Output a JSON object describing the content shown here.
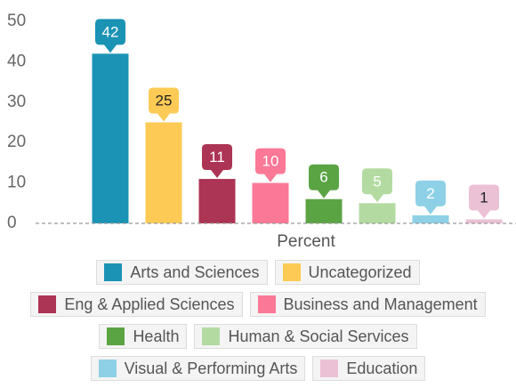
{
  "chart_data": {
    "type": "bar",
    "x_label": "Percent",
    "categories": [
      "Arts and Sciences",
      "Uncategorized",
      "Eng & Applied Sciences",
      "Business and Management",
      "Health",
      "Human & Social Services",
      "Visual & Performing Arts",
      "Education"
    ],
    "values": [
      42,
      25,
      11,
      10,
      6,
      5,
      2,
      1
    ],
    "colors": [
      "#1b93b4",
      "#fdcb55",
      "#ac3454",
      "#fb7896",
      "#5ba444",
      "#b3dba1",
      "#8ed1e6",
      "#ebc1d6"
    ],
    "label_colors": [
      "#ffffff",
      "#222222",
      "#ffffff",
      "#ffffff",
      "#ffffff",
      "#ffffff",
      "#ffffff",
      "#222222"
    ],
    "ylim": [
      0,
      50
    ],
    "yticks": [
      0,
      10,
      20,
      30,
      40,
      50
    ],
    "grid": false
  }
}
